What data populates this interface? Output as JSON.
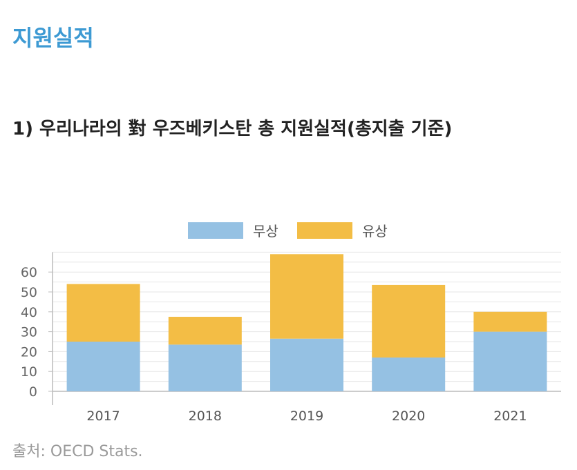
{
  "page": {
    "title": "지원실적",
    "heading": "1) 우리나라의 對 우즈베키스탄 총 지원실적(총지출 기준)",
    "source": "출처: OECD Stats."
  },
  "chart_data": {
    "type": "bar",
    "stacked": true,
    "categories": [
      "2017",
      "2018",
      "2019",
      "2020",
      "2021"
    ],
    "series": [
      {
        "name": "무상",
        "values": [
          25,
          23.5,
          26.5,
          17,
          30
        ],
        "color": "#95c1e3"
      },
      {
        "name": "유상",
        "values": [
          29,
          14,
          42.5,
          36.5,
          10
        ],
        "color": "#f3bd45"
      }
    ],
    "yticks": [
      0,
      10,
      20,
      30,
      40,
      50,
      60
    ],
    "ylim": [
      0,
      70
    ],
    "grid": true,
    "legend_position": "top"
  }
}
